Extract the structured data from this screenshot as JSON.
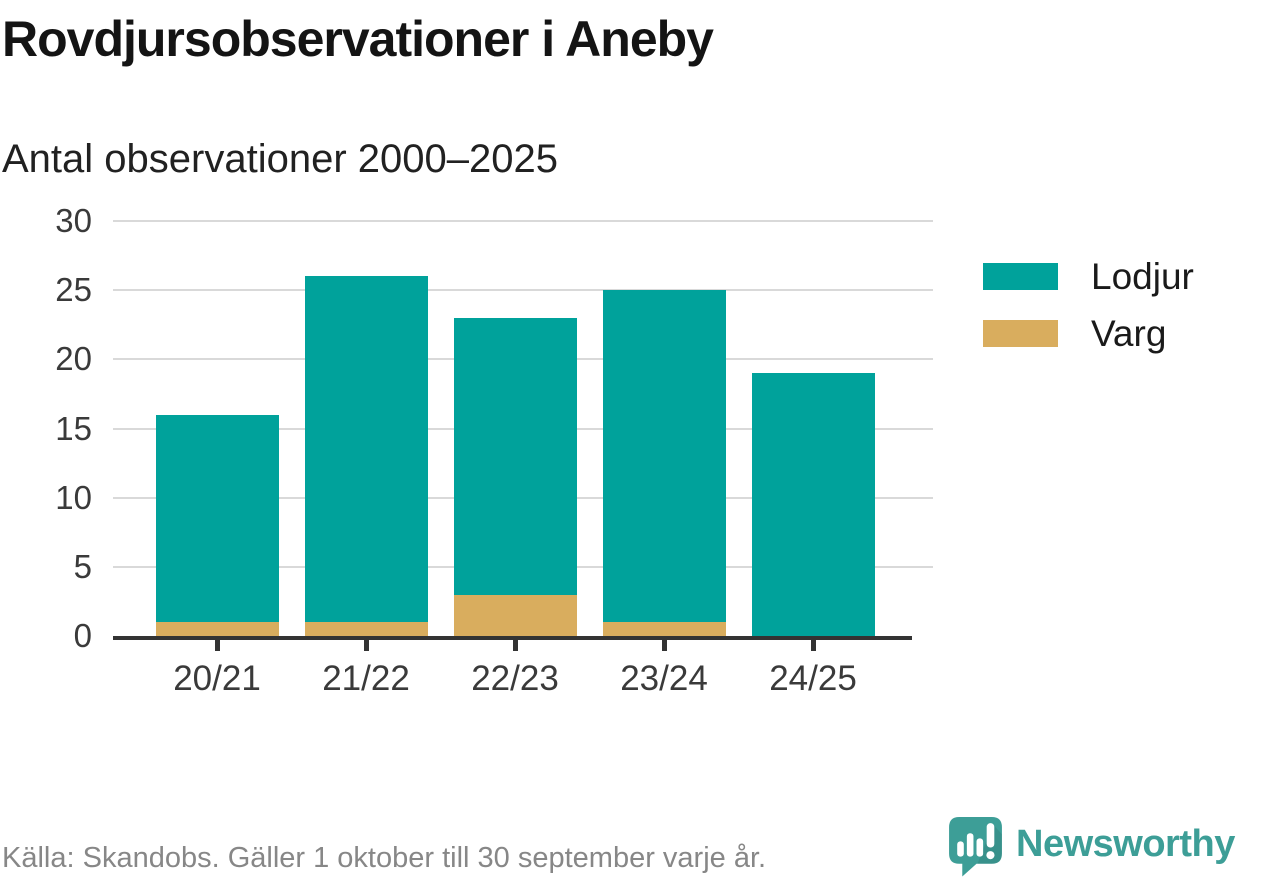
{
  "header": {
    "title": "Rovdjursobservationer i Aneby",
    "subtitle": "Antal observationer 2000–2025"
  },
  "chart_data": {
    "type": "bar",
    "stacked": true,
    "title": "Rovdjursobservationer i Aneby",
    "subtitle": "Antal observationer 2000–2025",
    "categories": [
      "20/21",
      "21/22",
      "22/23",
      "23/24",
      "24/25"
    ],
    "series": [
      {
        "name": "Lodjur",
        "color": "#00a29b",
        "values": [
          15,
          25,
          20,
          24,
          19
        ]
      },
      {
        "name": "Varg",
        "color": "#d9ad5e",
        "values": [
          1,
          1,
          3,
          1,
          0
        ]
      }
    ],
    "stack_totals": [
      16,
      26,
      23,
      25,
      19
    ],
    "xlabel": "",
    "ylabel": "",
    "ylim": [
      0,
      30
    ],
    "yticks": [
      0,
      5,
      10,
      15,
      20,
      25,
      30
    ],
    "grid": true,
    "legend_position": "right"
  },
  "footer": {
    "source": "Källa: Skandobs. Gäller 1 oktober till 30 september varje år.",
    "brand": "Newsworthy"
  },
  "style": {
    "accent_teal": "#00a29b",
    "accent_gold": "#d9ad5e",
    "brand_teal": "#3d9e97",
    "axis_color": "#333333",
    "grid_color": "#d9d9d9",
    "text_color": "#1a1a1a",
    "muted_text_color": "#878787"
  }
}
